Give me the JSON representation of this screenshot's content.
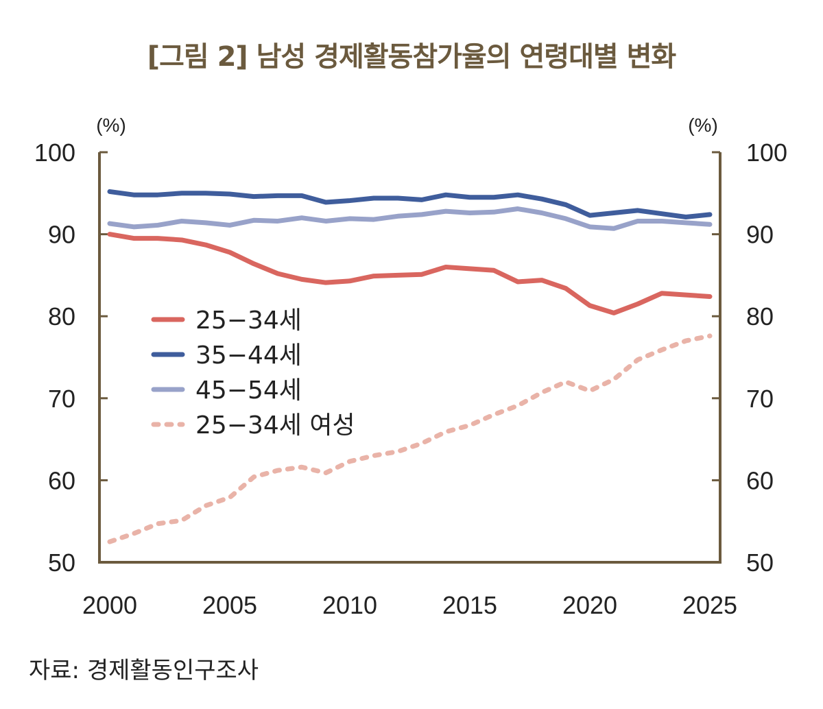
{
  "chart_data": {
    "type": "line",
    "title": "[그림 2] 남성 경제활동참가율의 연령대별 변화",
    "source": "자료: 경제활동인구조사",
    "ylabel_left": "(%)",
    "ylabel_right": "(%)",
    "ylim": [
      50,
      100
    ],
    "yticks": [
      50,
      60,
      70,
      80,
      90,
      100
    ],
    "xlim": [
      2000,
      2025
    ],
    "xticks": [
      2000,
      2005,
      2010,
      2015,
      2020,
      2025
    ],
    "grid": false,
    "legend_placement": "center-left",
    "x": [
      2000,
      2001,
      2002,
      2003,
      2004,
      2005,
      2006,
      2007,
      2008,
      2009,
      2010,
      2011,
      2012,
      2013,
      2014,
      2015,
      2016,
      2017,
      2018,
      2019,
      2020,
      2021,
      2022,
      2023,
      2024,
      2025
    ],
    "series": [
      {
        "name": "25−34세",
        "color": "#d9665f",
        "dashed": false,
        "values": [
          90.0,
          89.5,
          89.5,
          89.3,
          88.7,
          87.8,
          86.4,
          85.2,
          84.5,
          84.1,
          84.3,
          84.9,
          85.0,
          85.1,
          86.0,
          85.8,
          85.6,
          84.2,
          84.4,
          83.4,
          81.3,
          80.4,
          81.5,
          82.8,
          82.6,
          82.4
        ]
      },
      {
        "name": "35−44세",
        "color": "#3f5d9c",
        "dashed": false,
        "values": [
          95.2,
          94.8,
          94.8,
          95.0,
          95.0,
          94.9,
          94.6,
          94.7,
          94.7,
          93.9,
          94.1,
          94.4,
          94.4,
          94.2,
          94.8,
          94.5,
          94.5,
          94.8,
          94.3,
          93.6,
          92.3,
          92.6,
          92.9,
          92.5,
          92.1,
          92.4
        ]
      },
      {
        "name": "45−54세",
        "color": "#98a2c9",
        "dashed": false,
        "values": [
          91.3,
          90.9,
          91.1,
          91.6,
          91.4,
          91.1,
          91.7,
          91.6,
          92.0,
          91.6,
          91.9,
          91.8,
          92.2,
          92.4,
          92.8,
          92.6,
          92.7,
          93.1,
          92.6,
          91.9,
          90.9,
          90.7,
          91.6,
          91.6,
          91.4,
          91.2
        ]
      },
      {
        "name": "25−34세 여성",
        "color": "#e9b3a8",
        "dashed": true,
        "values": [
          52.5,
          53.5,
          54.7,
          55.1,
          56.9,
          57.9,
          60.4,
          61.2,
          61.6,
          60.9,
          62.3,
          63.0,
          63.5,
          64.5,
          65.9,
          66.7,
          68.0,
          69.1,
          70.7,
          72.0,
          70.9,
          72.3,
          74.7,
          75.9,
          77.0,
          77.6
        ]
      }
    ],
    "axis_color": "#6b5a3e"
  }
}
